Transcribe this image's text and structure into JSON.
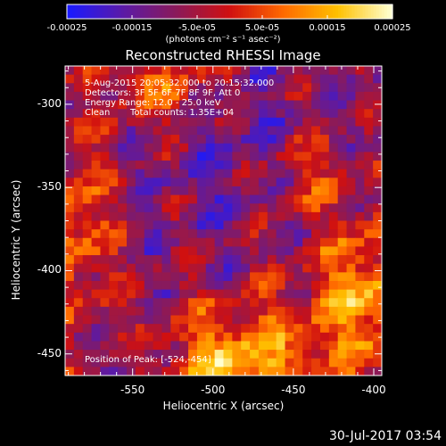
{
  "chart_data": {
    "type": "heatmap",
    "title": "Reconstructed RHESSI Image",
    "xlabel": "Heliocentric X (arcsec)",
    "ylabel": "Heliocentric Y (arcsec)",
    "xlim": [
      -592,
      -395
    ],
    "ylim": [
      -463,
      -277
    ],
    "xticks": [
      -550,
      -500,
      -450,
      -400
    ],
    "yticks": [
      -300,
      -350,
      -400,
      -450
    ],
    "colorbar": {
      "ticks": [
        "-0.00025",
        "-0.00015",
        "-5.0e-05",
        "5.0e-05",
        "0.00015",
        "0.00025"
      ],
      "label": "(photons cm⁻² s⁻¹ asec⁻²)",
      "range": [
        -0.00025,
        0.00025
      ],
      "colors": [
        "#1a1aff",
        "#5a1aa8",
        "#8a1a5a",
        "#d01010",
        "#ff6a00",
        "#ffc000",
        "#ffffd0"
      ]
    },
    "annotations": {
      "time": "5-Aug-2015 20:05:32.000 to 20:15:32.000",
      "detectors": "Detectors: 3F 5F 6F 7F 8F 9F, Att 0",
      "energy": "Energy Range: 12.0 - 25.0 keV",
      "algorithm": "Clean",
      "counts": "Total counts: 1.35E+04",
      "peak": "Position of Peak: [-524,-454]"
    },
    "peak_position": [
      -524,
      -454
    ]
  },
  "timestamp": "30-Jul-2017 03:54"
}
